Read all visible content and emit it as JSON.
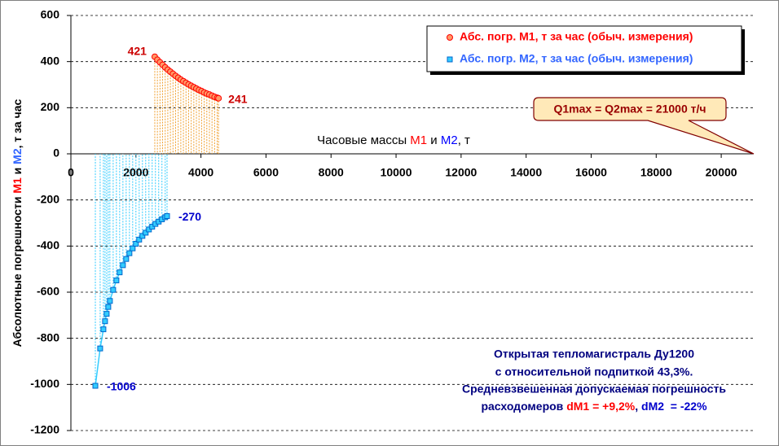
{
  "chart_data": {
    "type": "scatter",
    "y_label": [
      "Абсолютные погрешности ",
      "M1",
      " и ",
      "M2",
      ", т за час"
    ],
    "x_label": [
      "Часовые массы ",
      "M1",
      " и ",
      "M2",
      ", т"
    ],
    "callout": "Q1max = Q2max = 21000 т/ч",
    "callout_x": 21000,
    "note": {
      "lines": [
        "Открытая тепломагистраль Ду1200",
        "с относительной подпиткой 43,3%.",
        "Средневзвешенная допускаемая погрешность"
      ],
      "last_line": [
        "расходомеров ",
        "dM1 = +9,2%",
        ", ",
        "dM2  = -22%"
      ]
    },
    "xlim": [
      0,
      21000
    ],
    "ylim": [
      -1200,
      600
    ],
    "xticks": [
      0,
      2000,
      4000,
      6000,
      8000,
      10000,
      12000,
      14000,
      16000,
      18000,
      20000
    ],
    "yticks": [
      -1200,
      -1000,
      -800,
      -600,
      -400,
      -200,
      0,
      200,
      400,
      600
    ],
    "grid": true,
    "legend": "top-right",
    "series": [
      {
        "name": "Абс. погр. M1, т за час (обыч. измерения)",
        "color": "#ff0000",
        "fill": "#ff9966",
        "drop_color": "#f0a030",
        "x": [
          2580,
          2660,
          2740,
          2820,
          2900,
          2980,
          3060,
          3140,
          3220,
          3300,
          3380,
          3460,
          3540,
          3620,
          3700,
          3780,
          3860,
          3940,
          4020,
          4100,
          4180,
          4260,
          4340,
          4420,
          4500,
          4540
        ],
        "values": [
          421,
          408,
          397,
          386,
          375,
          365,
          356,
          347,
          338,
          330,
          322,
          315,
          308,
          301,
          295,
          289,
          283,
          277,
          272,
          266,
          261,
          257,
          252,
          247,
          243,
          241
        ]
      },
      {
        "name": "Абс. погр. M2, т за час (обыч. измерения)",
        "color": "#0066cc",
        "fill": "#33ccff",
        "drop_color": "#33ccff",
        "x": [
          752,
          900,
          1000,
          1050,
          1100,
          1150,
          1200,
          1300,
          1400,
          1500,
          1600,
          1700,
          1800,
          1900,
          2000,
          2100,
          2200,
          2300,
          2400,
          2500,
          2600,
          2700,
          2800,
          2900,
          2957
        ],
        "values": [
          -1006,
          -844,
          -761,
          -726,
          -694,
          -664,
          -638,
          -590,
          -549,
          -514,
          -483,
          -456,
          -431,
          -410,
          -390,
          -372,
          -356,
          -342,
          -328,
          -316,
          -304,
          -294,
          -284,
          -275,
          -270
        ]
      }
    ]
  }
}
